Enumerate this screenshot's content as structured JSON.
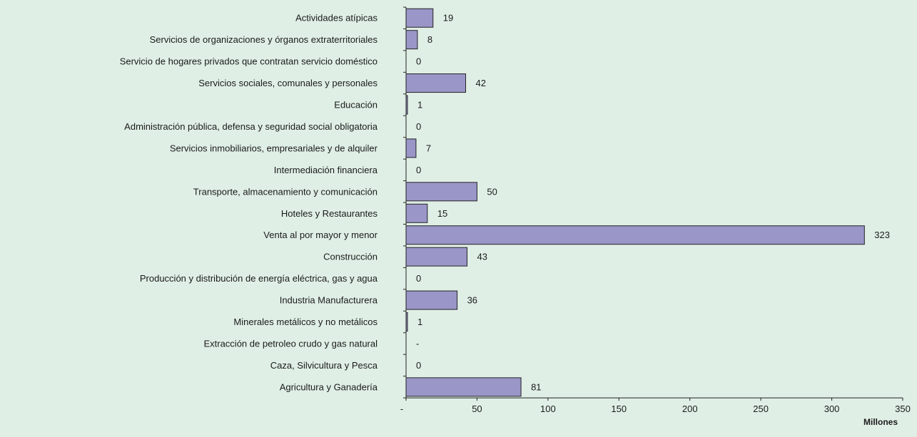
{
  "chart_data": {
    "type": "bar",
    "orientation": "horizontal",
    "categories": [
      "Actividades atípicas",
      "Servicios de organizaciones y órganos extraterritoriales",
      "Servicio de hogares privados que contratan servicio doméstico",
      "Servicios sociales, comunales y personales",
      "Educación",
      "Administración pública, defensa y seguridad social obligatoria",
      "Servicios inmobiliarios, empresariales y de alquiler",
      "Intermediación financiera",
      "Transporte, almacenamiento y comunicación",
      "Hoteles y Restaurantes",
      "Venta al por mayor y menor",
      "Construcción",
      "Producción y distribución de energía eléctrica, gas y agua",
      "Industria Manufacturera",
      "Minerales metálicos y no metálicos",
      "Extracción de petroleo crudo y gas natural",
      "Caza, Silvicultura y Pesca",
      "Agricultura y Ganadería"
    ],
    "values": [
      19,
      8,
      0,
      42,
      1,
      0,
      7,
      0,
      50,
      15,
      323,
      43,
      0,
      36,
      1,
      0,
      0,
      81
    ],
    "value_labels": [
      "19",
      "8",
      "0",
      "42",
      "1",
      "0",
      "7",
      "0",
      "50",
      "15",
      "323",
      "43",
      "0",
      "36",
      "1",
      "-",
      "0",
      "81"
    ],
    "xlim": [
      0,
      350
    ],
    "x_ticks": [
      "-",
      "50",
      "100",
      "150",
      "200",
      "250",
      "300",
      "350"
    ],
    "xlabel": "Millones",
    "colors": {
      "bar": "#9a96c8",
      "background": "#e0efe6"
    }
  }
}
